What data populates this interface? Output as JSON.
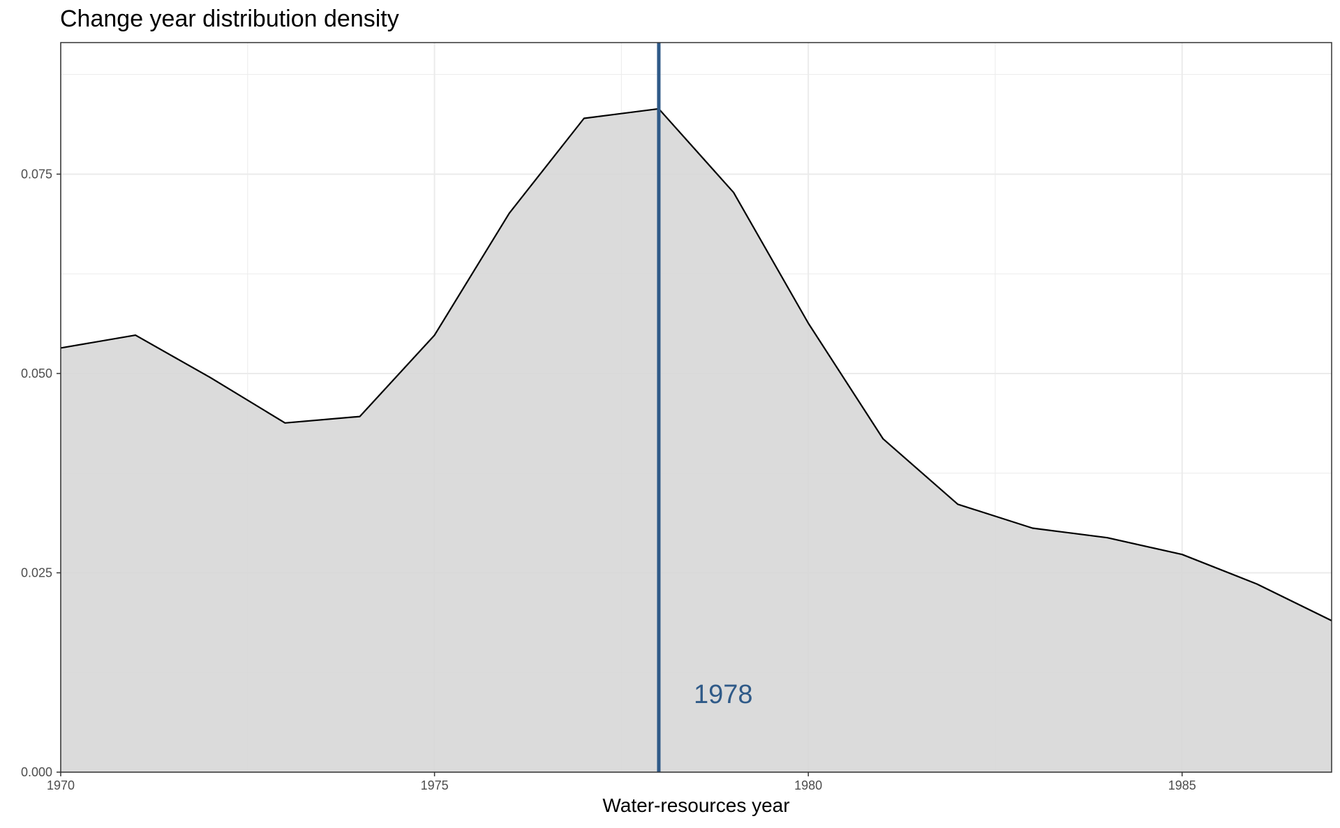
{
  "chart_data": {
    "type": "area",
    "title": "Change year distribution density",
    "xlabel": "Water-resources year",
    "ylabel": "",
    "xlim": [
      1970,
      1987
    ],
    "ylim": [
      0,
      0.0915
    ],
    "x_ticks": [
      1970,
      1975,
      1980,
      1985
    ],
    "x_tick_labels": [
      "1970",
      "1975",
      "1980",
      "1985"
    ],
    "y_ticks": [
      0.0,
      0.025,
      0.05,
      0.075
    ],
    "y_tick_labels": [
      "0.000",
      "0.025",
      "0.050",
      "0.075"
    ],
    "grid": true,
    "series": [
      {
        "x": [
          1970,
          1971,
          1972,
          1973,
          1974,
          1975,
          1976,
          1977,
          1978,
          1979,
          1980,
          1981,
          1982,
          1983,
          1984,
          1985,
          1986,
          1987
        ],
        "y": [
          0.0532,
          0.0548,
          0.0495,
          0.0438,
          0.0446,
          0.0548,
          0.0701,
          0.082,
          0.0832,
          0.0727,
          0.0563,
          0.0418,
          0.0336,
          0.0306,
          0.0294,
          0.0273,
          0.0236,
          0.019
        ]
      }
    ],
    "vline": {
      "x": 1978,
      "label": "1978",
      "label_y": 0.0098
    },
    "colors": {
      "fill": "#d6d6d6",
      "line": "#000000",
      "vline": "#2f5a88",
      "grid": "#ebebeb",
      "border": "#333333"
    }
  }
}
